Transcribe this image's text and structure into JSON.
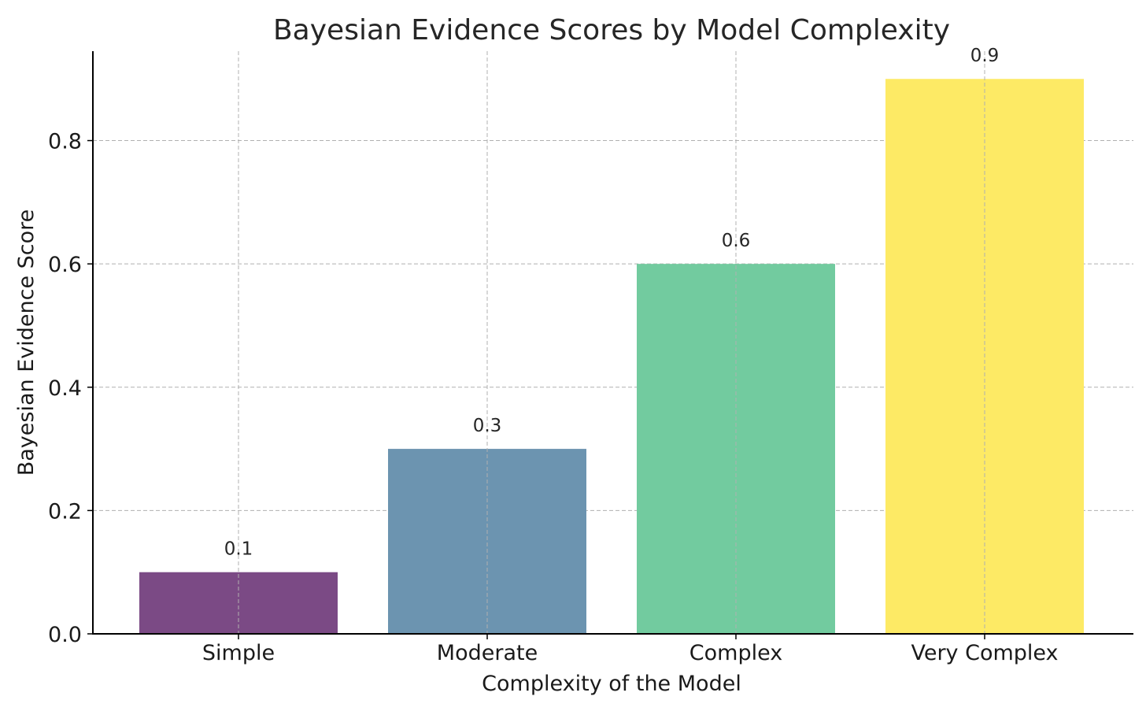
{
  "chart_data": {
    "type": "bar",
    "title": "Bayesian Evidence Scores by Model Complexity",
    "xlabel": "Complexity of the Model",
    "ylabel": "Bayesian Evidence Score",
    "categories": [
      "Simple",
      "Moderate",
      "Complex",
      "Very Complex"
    ],
    "values": [
      0.1,
      0.3,
      0.6,
      0.9
    ],
    "data_labels": [
      "0.1",
      "0.3",
      "0.6",
      "0.9"
    ],
    "colors": [
      "#7b4a85",
      "#6c94b0",
      "#72cb9f",
      "#fdea65"
    ],
    "ylim": [
      0,
      0.945
    ],
    "yticks": [
      0.0,
      0.2,
      0.4,
      0.6,
      0.8
    ],
    "ytick_labels": [
      "0.0",
      "0.2",
      "0.4",
      "0.6",
      "0.8"
    ],
    "grid": true,
    "legend": "none"
  }
}
